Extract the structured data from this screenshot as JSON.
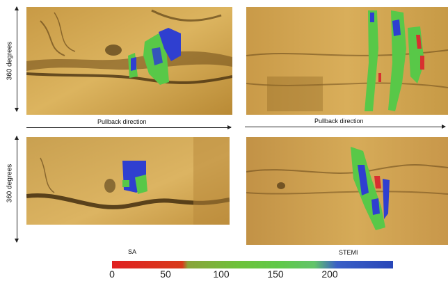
{
  "labels": {
    "axis_top": "360 degrees",
    "axis_bottom": "360 degrees",
    "pullback_left": "Pullback direction",
    "pullback_right": "Pullback direction",
    "sa": "SA",
    "stemi": "STEMI"
  },
  "colorbar": {
    "ticks": [
      "0",
      "50",
      "100",
      "150",
      "200"
    ],
    "colors": [
      "#e02020",
      "#d83a1a",
      "#8aa33a",
      "#6dc23a",
      "#5fc94a",
      "#62c46a",
      "#3a5fc6",
      "#2846b8"
    ]
  },
  "colors": {
    "tissue_light": "#d9ae5a",
    "tissue_dark": "#5a3c12",
    "overlay_blue": "#2f3fd0",
    "overlay_green": "#58c848",
    "overlay_red": "#d83030"
  }
}
